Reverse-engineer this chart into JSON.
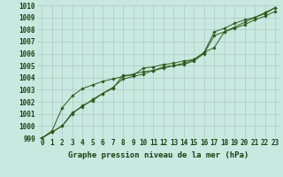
{
  "xlabel": "Graphe pression niveau de la mer (hPa)",
  "x_values": [
    0,
    1,
    2,
    3,
    4,
    5,
    6,
    7,
    8,
    9,
    10,
    11,
    12,
    13,
    14,
    15,
    16,
    17,
    18,
    19,
    20,
    21,
    22,
    23
  ],
  "series": [
    [
      999.0,
      999.5,
      1000.0,
      1001.1,
      1001.6,
      1002.2,
      1002.7,
      1003.2,
      1003.9,
      1004.1,
      1004.3,
      1004.6,
      1004.9,
      1005.0,
      1005.1,
      1005.4,
      1006.0,
      1007.5,
      1007.8,
      1008.1,
      1008.4,
      1008.8,
      1009.1,
      1009.5
    ],
    [
      999.0,
      999.6,
      1001.5,
      1002.5,
      1003.1,
      1003.4,
      1003.7,
      1003.9,
      1004.1,
      1004.3,
      1004.5,
      1004.6,
      1004.8,
      1005.0,
      1005.2,
      1005.5,
      1006.1,
      1006.5,
      1007.8,
      1008.2,
      1008.6,
      1009.0,
      1009.3,
      1009.8
    ],
    [
      999.0,
      999.5,
      1000.0,
      1001.0,
      1001.7,
      1002.1,
      1002.7,
      1003.1,
      1004.2,
      1004.2,
      1004.8,
      1004.9,
      1005.1,
      1005.2,
      1005.4,
      1005.5,
      1006.1,
      1007.8,
      1008.1,
      1008.5,
      1008.8,
      1009.0,
      1009.4,
      1009.8
    ]
  ],
  "ylim": [
    999,
    1010
  ],
  "yticks": [
    999,
    1000,
    1001,
    1002,
    1003,
    1004,
    1005,
    1006,
    1007,
    1008,
    1009,
    1010
  ],
  "xticks": [
    0,
    1,
    2,
    3,
    4,
    5,
    6,
    7,
    8,
    9,
    10,
    11,
    12,
    13,
    14,
    15,
    16,
    17,
    18,
    19,
    20,
    21,
    22,
    23
  ],
  "line_color": "#2d5a1b",
  "marker_color": "#2d5a1b",
  "bg_color": "#c8e8e0",
  "grid_color": "#b0c8c0",
  "title_color": "#1a4010",
  "xlabel_fontsize": 6.5,
  "tick_fontsize": 5.5
}
